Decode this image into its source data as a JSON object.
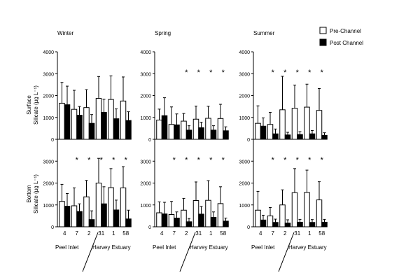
{
  "chart_data": {
    "type": "bar",
    "ylabels": {
      "surface": {
        "line1": "Surface",
        "line2": "Silicate (µg L⁻¹)"
      },
      "bottom": {
        "line1": "Bottom",
        "line2": "Silicate (µg L⁻¹)"
      }
    },
    "legend": {
      "placement": "top-right",
      "pre": "Pre-Channel",
      "post": "Post Channel"
    },
    "colors": {
      "pre": "#ffffff",
      "post": "#000000",
      "stroke": "#000000"
    },
    "ylim": [
      0,
      4000
    ],
    "ytick_labels": [
      "0",
      "1000",
      "2000",
      "3000",
      "4000"
    ],
    "bottom_ytick_labels": [
      "0",
      "1000",
      "2000",
      "3000"
    ],
    "categories": [
      "4",
      "7",
      "2",
      "31",
      "1",
      "58"
    ],
    "region_labels": {
      "left": "Peel Inlet",
      "right": "Harvey Estuary"
    },
    "significance_marker": "*",
    "panels": [
      {
        "id": "winter-surface",
        "title": "Winter",
        "series": [
          {
            "name": "Pre-Channel",
            "values": [
              1650,
              1370,
              1450,
              1870,
              1820,
              1750
            ],
            "errors": [
              950,
              870,
              820,
              1000,
              1080,
              1100
            ]
          },
          {
            "name": "Post Channel",
            "values": [
              1580,
              1100,
              730,
              1230,
              940,
              860
            ],
            "errors": [
              850,
              400,
              400,
              600,
              450,
              400
            ]
          }
        ],
        "significant": [
          false,
          false,
          false,
          false,
          false,
          false
        ]
      },
      {
        "id": "spring-surface",
        "title": "Spring",
        "series": [
          {
            "name": "Pre-Channel",
            "values": [
              880,
              680,
              830,
              920,
              960,
              950
            ],
            "errors": [
              500,
              800,
              350,
              600,
              550,
              650
            ]
          },
          {
            "name": "Post Channel",
            "values": [
              1080,
              660,
              420,
              530,
              420,
              390
            ],
            "errors": [
              820,
              500,
              200,
              250,
              200,
              180
            ]
          }
        ],
        "significant": [
          false,
          false,
          true,
          true,
          true,
          true
        ]
      },
      {
        "id": "summer-surface",
        "title": "Summer",
        "series": [
          {
            "name": "Pre-Channel",
            "values": [
              730,
              680,
              1350,
              1420,
              1470,
              1320
            ],
            "errors": [
              800,
              550,
              1530,
              1060,
              1050,
              1000
            ]
          },
          {
            "name": "Post Channel",
            "values": [
              600,
              250,
              200,
              220,
              250,
              180
            ],
            "errors": [
              380,
              220,
              120,
              130,
              150,
              120
            ]
          }
        ],
        "significant": [
          false,
          true,
          true,
          true,
          true,
          true
        ]
      },
      {
        "id": "winter-bottom",
        "title": "",
        "series": [
          {
            "name": "Pre-Channel",
            "values": [
              1160,
              960,
              1370,
              2000,
              1790,
              1780
            ],
            "errors": [
              780,
              820,
              750,
              1130,
              870,
              970
            ]
          },
          {
            "name": "Post Channel",
            "values": [
              940,
              700,
              330,
              1050,
              770,
              360
            ],
            "errors": [
              580,
              350,
              400,
              780,
              450,
              400
            ]
          }
        ],
        "significant": [
          false,
          true,
          true,
          true,
          true,
          true
        ]
      },
      {
        "id": "spring-bottom",
        "title": "",
        "series": [
          {
            "name": "Pre-Channel",
            "values": [
              640,
              560,
              760,
              1200,
              1210,
              1060
            ],
            "errors": [
              500,
              600,
              540,
              850,
              900,
              770
            ]
          },
          {
            "name": "Post Channel",
            "values": [
              590,
              400,
              230,
              580,
              430,
              260
            ],
            "errors": [
              530,
              280,
              150,
              350,
              250,
              140
            ]
          }
        ],
        "significant": [
          false,
          true,
          true,
          true,
          true,
          true
        ]
      },
      {
        "id": "summer-bottom",
        "title": "",
        "series": [
          {
            "name": "Pre-Channel",
            "values": [
              760,
              500,
              1000,
              1560,
              1570,
              1230
            ],
            "errors": [
              860,
              380,
              690,
              1100,
              1020,
              830
            ]
          },
          {
            "name": "Post Channel",
            "values": [
              310,
              200,
              170,
              210,
              200,
              210
            ],
            "errors": [
              220,
              150,
              150,
              130,
              130,
              130
            ]
          }
        ],
        "significant": [
          false,
          true,
          true,
          true,
          true,
          true
        ]
      }
    ]
  }
}
